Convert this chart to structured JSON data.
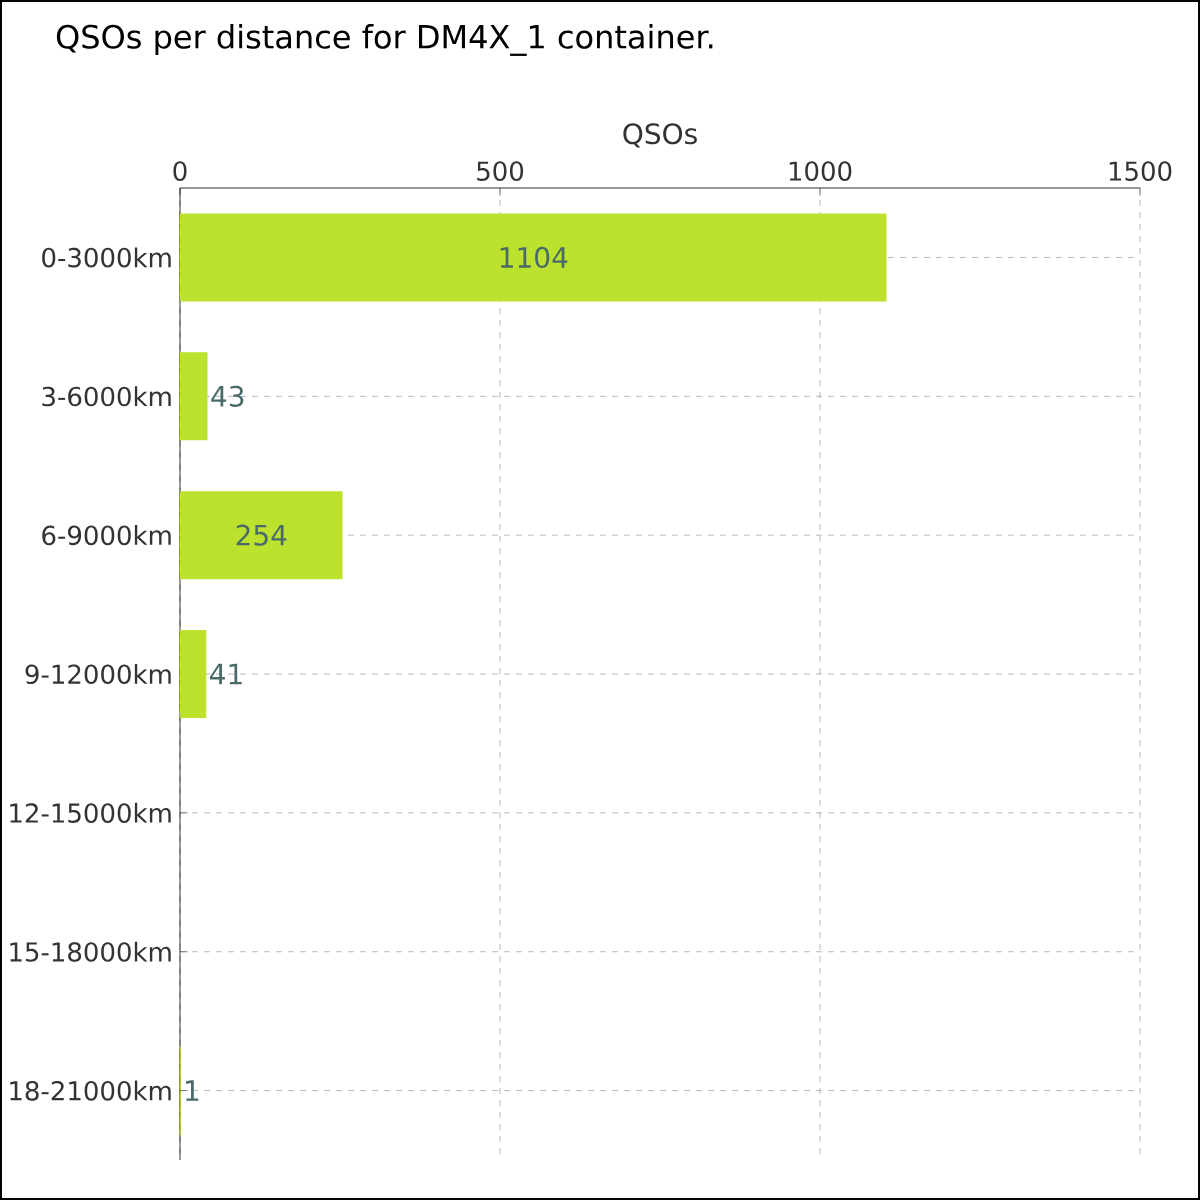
{
  "chart_data": {
    "type": "bar",
    "orientation": "horizontal",
    "title": "QSOs per distance for DM4X_1 container.",
    "xlabel": "QSOs",
    "categories": [
      "0-3000km",
      "3-6000km",
      "6-9000km",
      "9-12000km",
      "12-15000km",
      "15-18000km",
      "18-21000km"
    ],
    "values": [
      1104,
      43,
      254,
      41,
      0,
      0,
      1
    ],
    "value_labels": [
      "1104",
      "43",
      "254",
      "41",
      null,
      null,
      "1"
    ],
    "color": "#bde22e",
    "xlim": [
      0,
      1500
    ],
    "xticks": [
      0,
      500,
      1000,
      1500
    ],
    "grid": true
  }
}
